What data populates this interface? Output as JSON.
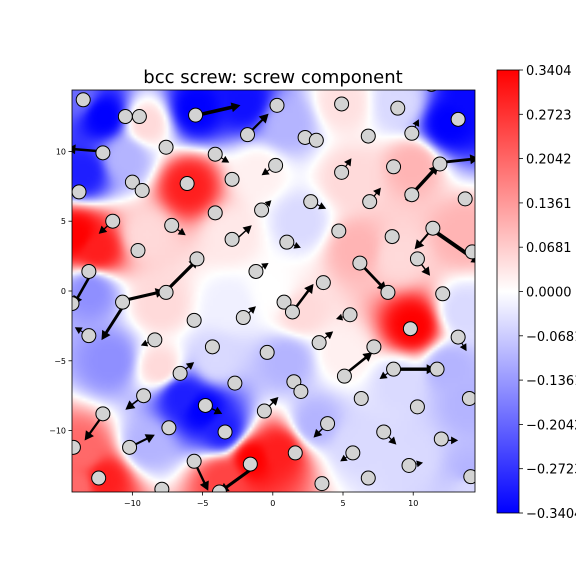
{
  "chart_data": {
    "type": "heatmap",
    "title": "bcc screw: screw component",
    "xlabel": "",
    "ylabel": "",
    "xlim": [
      -14.3,
      14.4
    ],
    "ylim": [
      -14.4,
      14.4
    ],
    "x_ticks": [
      -10,
      -5,
      0,
      5,
      10
    ],
    "y_ticks": [
      -10,
      -5,
      0,
      5,
      10
    ],
    "colormap": "bwr",
    "colors": {
      "low": "#0000ff",
      "mid": "#ffffff",
      "high": "#ff0000",
      "atom_fill": "#d3d3d3",
      "atom_edge": "#000000"
    },
    "colorbar": {
      "min": -0.3404,
      "max": 0.3404,
      "tick_labels": [
        "0.3404",
        "0.2723",
        "0.2042",
        "0.1361",
        "0.0681",
        "0.0000",
        "-0.0681",
        "-0.1361",
        "-0.2042",
        "-0.2723",
        "-0.3404"
      ]
    },
    "field_points": [
      {
        "x": -12.0,
        "y": 12.5,
        "v": -0.3404
      },
      {
        "x": -13.5,
        "y": 8.5,
        "v": -0.3
      },
      {
        "x": -10.5,
        "y": 9.5,
        "v": -0.1
      },
      {
        "x": -6.0,
        "y": 7.5,
        "v": 0.3
      },
      {
        "x": -5.5,
        "y": 13.0,
        "v": -0.3404
      },
      {
        "x": -2.0,
        "y": 13.5,
        "v": -0.32
      },
      {
        "x": 1.0,
        "y": 12.0,
        "v": -0.1
      },
      {
        "x": 5.0,
        "y": 13.5,
        "v": 0.04
      },
      {
        "x": 9.0,
        "y": 13.5,
        "v": -0.05
      },
      {
        "x": 12.5,
        "y": 12.0,
        "v": -0.3404
      },
      {
        "x": 14.0,
        "y": 13.8,
        "v": -0.33
      },
      {
        "x": -14.0,
        "y": 4.0,
        "v": 0.3404
      },
      {
        "x": -12.5,
        "y": 3.0,
        "v": 0.3
      },
      {
        "x": -9.0,
        "y": 4.0,
        "v": 0.05
      },
      {
        "x": -3.0,
        "y": 4.0,
        "v": 0.03
      },
      {
        "x": 2.0,
        "y": 5.0,
        "v": -0.05
      },
      {
        "x": 6.0,
        "y": 3.0,
        "v": 0.1
      },
      {
        "x": 9.0,
        "y": 2.5,
        "v": 0.05
      },
      {
        "x": 13.5,
        "y": 4.0,
        "v": 0.1
      },
      {
        "x": -13.0,
        "y": 0.0,
        "v": -0.15
      },
      {
        "x": -8.0,
        "y": -1.0,
        "v": 0.05
      },
      {
        "x": -3.0,
        "y": -1.0,
        "v": -0.02
      },
      {
        "x": 2.0,
        "y": -1.5,
        "v": 0.05
      },
      {
        "x": 10.0,
        "y": -2.5,
        "v": 0.3404
      },
      {
        "x": 13.5,
        "y": -1.5,
        "v": -0.05
      },
      {
        "x": 12.5,
        "y": -5.5,
        "v": -0.1
      },
      {
        "x": -11.5,
        "y": -5.0,
        "v": -0.15
      },
      {
        "x": -8.0,
        "y": -5.5,
        "v": 0.05
      },
      {
        "x": -4.0,
        "y": -5.0,
        "v": -0.05
      },
      {
        "x": 1.0,
        "y": -5.0,
        "v": -0.1
      },
      {
        "x": 5.0,
        "y": -4.5,
        "v": 0.02
      },
      {
        "x": 9.0,
        "y": -6.5,
        "v": -0.05
      },
      {
        "x": -5.0,
        "y": -8.5,
        "v": -0.3404
      },
      {
        "x": -6.5,
        "y": -7.5,
        "v": -0.3
      },
      {
        "x": -3.5,
        "y": -10.0,
        "v": -0.3
      },
      {
        "x": -13.5,
        "y": -11.5,
        "v": 0.2
      },
      {
        "x": -12.0,
        "y": -13.5,
        "v": 0.3
      },
      {
        "x": -9.0,
        "y": -11.0,
        "v": -0.1
      },
      {
        "x": -1.5,
        "y": -12.0,
        "v": 0.3404
      },
      {
        "x": 0.5,
        "y": -11.5,
        "v": 0.3
      },
      {
        "x": -3.5,
        "y": -13.5,
        "v": 0.25
      },
      {
        "x": 3.0,
        "y": -9.5,
        "v": -0.1
      },
      {
        "x": 6.0,
        "y": -11.0,
        "v": -0.05
      },
      {
        "x": 10.0,
        "y": -12.0,
        "v": -0.05
      },
      {
        "x": 14.0,
        "y": -13.0,
        "v": -0.1
      },
      {
        "x": 14.0,
        "y": -8.0,
        "v": -0.1
      },
      {
        "x": -14.0,
        "y": 14.0,
        "v": -0.2
      },
      {
        "x": -14.0,
        "y": -14.0,
        "v": 0.2
      },
      {
        "x": 14.0,
        "y": -14.0,
        "v": -0.05
      },
      {
        "x": 0.0,
        "y": 0.0,
        "v": 0.0
      },
      {
        "x": -9.0,
        "y": 12.0,
        "v": 0.05
      },
      {
        "x": 5.5,
        "y": 8.0,
        "v": 0.05
      },
      {
        "x": 10.0,
        "y": 9.0,
        "v": 0.1
      },
      {
        "x": -1.0,
        "y": 8.5,
        "v": 0.02
      }
    ],
    "atoms": [
      {
        "x": -13.5,
        "y": 13.7
      },
      {
        "x": -10.5,
        "y": 12.5
      },
      {
        "x": -9.5,
        "y": 12.5
      },
      {
        "x": -5.5,
        "y": 12.6
      },
      {
        "x": 0.3,
        "y": 13.3
      },
      {
        "x": 4.9,
        "y": 13.4
      },
      {
        "x": 8.9,
        "y": 13.1
      },
      {
        "x": 11.3,
        "y": 14.8
      },
      {
        "x": 13.2,
        "y": 12.3
      },
      {
        "x": -1.8,
        "y": 11.2
      },
      {
        "x": 2.3,
        "y": 11.0
      },
      {
        "x": 3.1,
        "y": 10.8
      },
      {
        "x": 6.8,
        "y": 11.1
      },
      {
        "x": 9.9,
        "y": 11.3
      },
      {
        "x": -12.1,
        "y": 9.9
      },
      {
        "x": -7.6,
        "y": 10.3
      },
      {
        "x": -4.1,
        "y": 9.8
      },
      {
        "x": 0.2,
        "y": 9.0
      },
      {
        "x": 4.9,
        "y": 8.5
      },
      {
        "x": 8.6,
        "y": 8.9
      },
      {
        "x": 11.9,
        "y": 9.1
      },
      {
        "x": -13.8,
        "y": 7.1
      },
      {
        "x": -10.0,
        "y": 7.8
      },
      {
        "x": -9.3,
        "y": 7.2
      },
      {
        "x": -6.1,
        "y": 7.7
      },
      {
        "x": -2.9,
        "y": 8.0
      },
      {
        "x": 2.7,
        "y": 6.4
      },
      {
        "x": 6.9,
        "y": 6.4
      },
      {
        "x": 9.9,
        "y": 6.9
      },
      {
        "x": 13.7,
        "y": 6.6
      },
      {
        "x": -11.4,
        "y": 5.0
      },
      {
        "x": -7.2,
        "y": 4.7
      },
      {
        "x": -4.1,
        "y": 5.6
      },
      {
        "x": -0.8,
        "y": 5.8
      },
      {
        "x": 4.7,
        "y": 4.3
      },
      {
        "x": 11.4,
        "y": 4.5
      },
      {
        "x": -9.6,
        "y": 2.9
      },
      {
        "x": -2.9,
        "y": 3.7
      },
      {
        "x": 1.0,
        "y": 3.5
      },
      {
        "x": 8.5,
        "y": 3.9
      },
      {
        "x": 14.2,
        "y": 2.8
      },
      {
        "x": -13.1,
        "y": 1.4
      },
      {
        "x": -5.4,
        "y": 2.3
      },
      {
        "x": -1.2,
        "y": 1.4
      },
      {
        "x": 3.6,
        "y": 0.6
      },
      {
        "x": 6.2,
        "y": 2.0
      },
      {
        "x": 10.3,
        "y": 2.3
      },
      {
        "x": -14.3,
        "y": -0.9
      },
      {
        "x": -10.7,
        "y": -0.8
      },
      {
        "x": -7.6,
        "y": -0.1
      },
      {
        "x": 0.8,
        "y": -0.8
      },
      {
        "x": 8.2,
        "y": -0.1
      },
      {
        "x": 12.1,
        "y": -0.2
      },
      {
        "x": -13.1,
        "y": -3.2
      },
      {
        "x": -5.6,
        "y": -2.1
      },
      {
        "x": -2.1,
        "y": -1.9
      },
      {
        "x": 1.4,
        "y": -1.5
      },
      {
        "x": 5.5,
        "y": -1.7
      },
      {
        "x": 9.8,
        "y": -2.7
      },
      {
        "x": -8.4,
        "y": -3.5
      },
      {
        "x": -4.3,
        "y": -4.0
      },
      {
        "x": -0.4,
        "y": -4.4
      },
      {
        "x": 3.3,
        "y": -3.7
      },
      {
        "x": 7.2,
        "y": -4.0
      },
      {
        "x": 13.2,
        "y": -3.3
      },
      {
        "x": 8.6,
        "y": -5.6
      },
      {
        "x": 11.7,
        "y": -5.6
      },
      {
        "x": -6.6,
        "y": -5.9
      },
      {
        "x": -2.7,
        "y": -6.6
      },
      {
        "x": 1.5,
        "y": -6.5
      },
      {
        "x": 2.0,
        "y": -7.2
      },
      {
        "x": 5.1,
        "y": -6.1
      },
      {
        "x": -9.2,
        "y": -7.5
      },
      {
        "x": -4.8,
        "y": -8.2
      },
      {
        "x": -0.6,
        "y": -8.6
      },
      {
        "x": 6.3,
        "y": -7.7
      },
      {
        "x": 10.3,
        "y": -8.3
      },
      {
        "x": 14.0,
        "y": -7.7
      },
      {
        "x": -12.1,
        "y": -8.8
      },
      {
        "x": -3.4,
        "y": -10.1
      },
      {
        "x": 3.9,
        "y": -9.5
      },
      {
        "x": 7.9,
        "y": -10.1
      },
      {
        "x": -14.2,
        "y": -11.2
      },
      {
        "x": -10.2,
        "y": -11.2
      },
      {
        "x": -7.4,
        "y": -9.8
      },
      {
        "x": 12.0,
        "y": -10.6
      },
      {
        "x": -5.6,
        "y": -12.2
      },
      {
        "x": -1.6,
        "y": -12.4
      },
      {
        "x": 1.6,
        "y": -11.6
      },
      {
        "x": 5.7,
        "y": -11.6
      },
      {
        "x": 9.7,
        "y": -12.5
      },
      {
        "x": -12.4,
        "y": -13.4
      },
      {
        "x": -7.9,
        "y": -14.2
      },
      {
        "x": -3.8,
        "y": -14.4
      },
      {
        "x": 3.5,
        "y": -13.8
      },
      {
        "x": 6.8,
        "y": -13.4
      },
      {
        "x": 14.1,
        "y": -13.3
      }
    ],
    "arrows": [
      {
        "x": -5.8,
        "y": 12.5,
        "dx": 3.5,
        "dy": 0.8
      },
      {
        "x": -12.2,
        "y": 10.0,
        "dx": -2.5,
        "dy": 0.2
      },
      {
        "x": 11.9,
        "y": 9.2,
        "dx": 2.8,
        "dy": 0.3
      },
      {
        "x": 9.5,
        "y": 6.5,
        "dx": 2.3,
        "dy": 2.5
      },
      {
        "x": 11.5,
        "y": 4.3,
        "dx": 3.3,
        "dy": -2.3
      },
      {
        "x": 6.2,
        "y": 2.0,
        "dx": 1.9,
        "dy": -2.0
      },
      {
        "x": -10.7,
        "y": -0.7,
        "dx": 3.0,
        "dy": 0.7
      },
      {
        "x": -7.6,
        "y": 0.0,
        "dx": 2.3,
        "dy": 2.3
      },
      {
        "x": -10.6,
        "y": -1.0,
        "dx": -1.6,
        "dy": -2.5
      },
      {
        "x": -12.9,
        "y": 1.3,
        "dx": -1.3,
        "dy": -2.3
      },
      {
        "x": 1.4,
        "y": -1.5,
        "dx": 1.5,
        "dy": 2.0
      },
      {
        "x": 8.3,
        "y": -5.6,
        "dx": 3.3,
        "dy": 0.0
      },
      {
        "x": 5.1,
        "y": -6.0,
        "dx": 2.0,
        "dy": 1.6
      },
      {
        "x": -1.3,
        "y": -12.6,
        "dx": -2.5,
        "dy": -1.8
      },
      {
        "x": -5.6,
        "y": -12.2,
        "dx": 1.0,
        "dy": -2.1
      },
      {
        "x": -12.1,
        "y": -8.9,
        "dx": -1.3,
        "dy": -1.8
      },
      {
        "x": -10.2,
        "y": -11.2,
        "dx": 1.8,
        "dy": 0.9
      },
      {
        "x": -1.8,
        "y": 11.2,
        "dx": 1.5,
        "dy": 1.5
      },
      {
        "x": 11.4,
        "y": 4.5,
        "dx": -1.3,
        "dy": -1.5
      },
      {
        "x": -9.2,
        "y": -7.5,
        "dx": -1.3,
        "dy": -1.0
      },
      {
        "x": -2.6,
        "y": 3.7,
        "dx": 1.1,
        "dy": 1.0
      },
      {
        "x": 12.0,
        "y": -10.7,
        "dx": 1.2,
        "dy": 0.0
      },
      {
        "x": 3.3,
        "y": -3.7,
        "dx": 1.0,
        "dy": 0.8
      },
      {
        "x": 8.6,
        "y": -5.6,
        "dx": -1.0,
        "dy": -0.7
      },
      {
        "x": -0.6,
        "y": -8.6,
        "dx": 1.0,
        "dy": 1.0
      },
      {
        "x": -6.6,
        "y": -5.9,
        "dx": 1.0,
        "dy": 0.8
      },
      {
        "x": -4.8,
        "y": -8.2,
        "dx": 1.2,
        "dy": -0.6
      },
      {
        "x": 6.9,
        "y": 6.4,
        "dx": 0.8,
        "dy": 1.0
      },
      {
        "x": -2.1,
        "y": -1.9,
        "dx": 0.9,
        "dy": 0.8
      },
      {
        "x": -11.4,
        "y": 5.0,
        "dx": -1.0,
        "dy": -0.9
      },
      {
        "x": 1.0,
        "y": 3.5,
        "dx": 1.0,
        "dy": -0.4
      },
      {
        "x": 10.3,
        "y": 2.3,
        "dx": 0.9,
        "dy": -1.2
      },
      {
        "x": 2.7,
        "y": 6.4,
        "dx": 1.1,
        "dy": -0.5
      },
      {
        "x": 3.9,
        "y": -9.5,
        "dx": -1.0,
        "dy": -1.0
      },
      {
        "x": -13.1,
        "y": -3.2,
        "dx": -1.0,
        "dy": 0.6
      },
      {
        "x": -7.2,
        "y": 4.7,
        "dx": 1.0,
        "dy": -0.7
      },
      {
        "x": -4.1,
        "y": 9.8,
        "dx": 1.0,
        "dy": -0.6
      },
      {
        "x": 4.9,
        "y": 8.5,
        "dx": 0.7,
        "dy": 1.0
      },
      {
        "x": 0.2,
        "y": 9.0,
        "dx": -1.0,
        "dy": -0.7
      },
      {
        "x": 9.9,
        "y": 11.3,
        "dx": 0.5,
        "dy": 1.0
      },
      {
        "x": -1.2,
        "y": 1.4,
        "dx": 0.9,
        "dy": 0.6
      },
      {
        "x": 5.5,
        "y": -1.7,
        "dx": -1.0,
        "dy": -0.3
      },
      {
        "x": 13.2,
        "y": -3.3,
        "dx": 0.6,
        "dy": -1.0
      },
      {
        "x": 7.9,
        "y": -10.1,
        "dx": 0.9,
        "dy": -0.9
      },
      {
        "x": 9.7,
        "y": -12.5,
        "dx": 1.0,
        "dy": 0.2
      },
      {
        "x": 5.7,
        "y": -11.6,
        "dx": -0.9,
        "dy": -0.6
      },
      {
        "x": -8.4,
        "y": -3.5,
        "dx": -1.0,
        "dy": -0.4
      },
      {
        "x": -0.8,
        "y": 5.8,
        "dx": 0.7,
        "dy": 0.7
      }
    ]
  }
}
